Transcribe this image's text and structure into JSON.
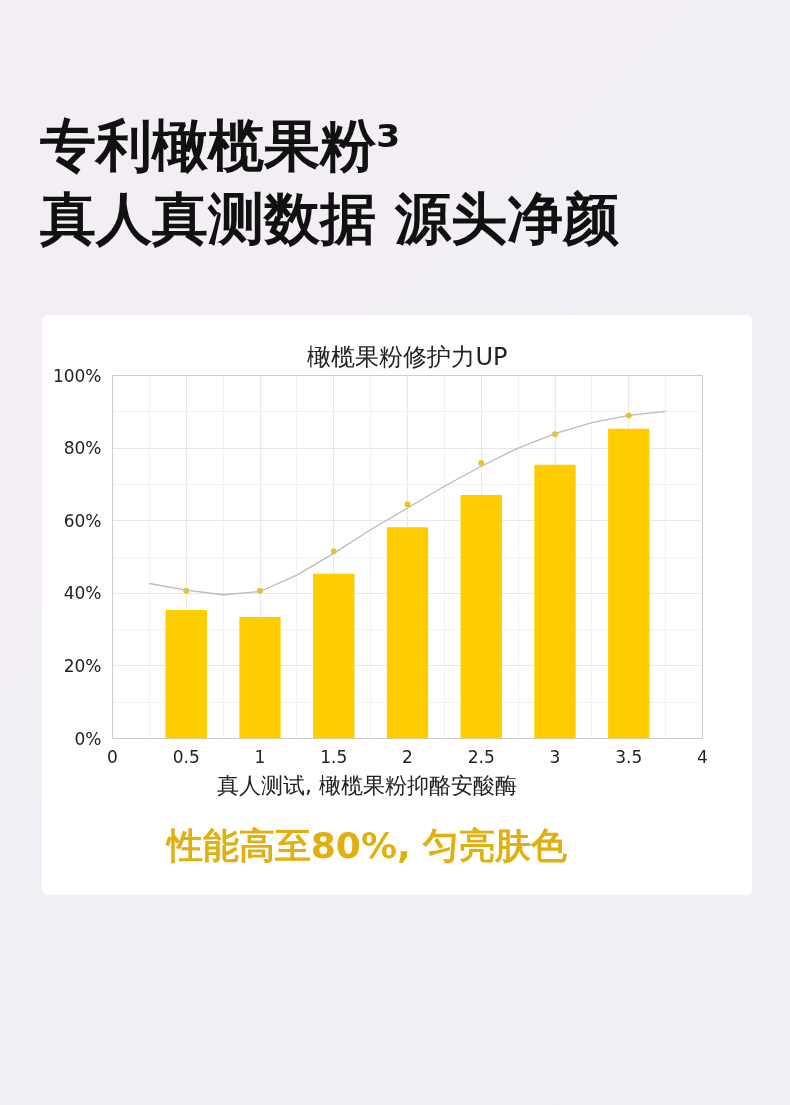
{
  "chart_data": {
    "type": "bar",
    "title": "专利橄榄果粉³\n真人真测数据 源头净颜",
    "subtitle": "橄榄果粉修护力UP",
    "x": [
      0.5,
      1,
      1.5,
      2,
      2.5,
      3,
      3.5
    ],
    "series": [
      {
        "color": "#ffcc00",
        "values": [
          35.4,
          33.5,
          45.4,
          58.2,
          67.1,
          75.4,
          85.3
        ]
      },
      {
        "type": "scatter",
        "color": "#f2c31a",
        "marker": "circle",
        "values": [
          40.7,
          40.7,
          51.6,
          64.5,
          75.9,
          83.8,
          89.0
        ]
      },
      {
        "type": "line",
        "color": "#bbbbbb",
        "line_style": "solid",
        "x": [
          0.25,
          0.5,
          0.75,
          1,
          1.25,
          1.5,
          1.75,
          2,
          2.25,
          2.5,
          2.75,
          3,
          3.25,
          3.5,
          3.75
        ],
        "values": [
          42.7,
          40.9,
          39.6,
          40.5,
          45,
          51,
          57.5,
          63.5,
          69.5,
          75,
          80,
          84,
          87,
          89,
          90.1
        ]
      }
    ],
    "xlim": [
      0,
      4
    ],
    "xticks": [
      0,
      0.5,
      1,
      1.5,
      2,
      2.5,
      3,
      3.5,
      4
    ],
    "ylim": [
      0,
      100
    ],
    "yticks": [
      {
        "value": 0,
        "label": "0%"
      },
      {
        "value": 20,
        "label": "20%"
      },
      {
        "value": 40,
        "label": "40%"
      },
      {
        "value": 60,
        "label": "60%"
      },
      {
        "value": 80,
        "label": "80%"
      },
      {
        "value": 100,
        "label": "100%"
      }
    ],
    "grid": true,
    "annotations": [
      "真人测试, 橄榄果粉抑酪安酸酶",
      "性能高至80%, 匀亮肤色"
    ]
  }
}
